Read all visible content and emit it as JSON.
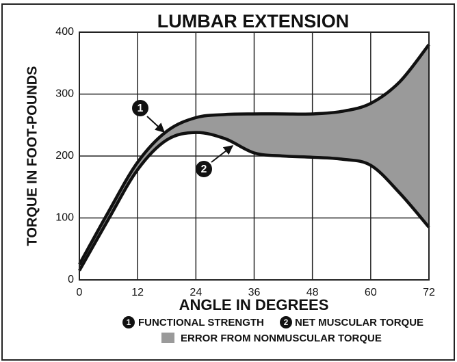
{
  "chart_data": {
    "type": "line",
    "title": "LUMBAR EXTENSION",
    "x_label": "ANGLE IN DEGREES",
    "y_label": "TORQUE IN FOOT-POUNDS",
    "x": [
      0,
      6,
      12,
      18,
      24,
      30,
      36,
      42,
      48,
      54,
      60,
      66,
      72
    ],
    "series": [
      {
        "name": "FUNCTIONAL STRENGTH",
        "marker": "1",
        "color": "#111111",
        "values": [
          25,
          110,
          190,
          240,
          262,
          267,
          268,
          268,
          268,
          272,
          285,
          320,
          380
        ]
      },
      {
        "name": "NET MUSCULAR TORQUE",
        "marker": "2",
        "color": "#111111",
        "values": [
          15,
          98,
          178,
          226,
          238,
          228,
          205,
          200,
          198,
          195,
          185,
          140,
          85
        ]
      }
    ],
    "area_label": "ERROR FROM NONMUSCULAR TORQUE",
    "area_color": "#9a9a9a",
    "xlim": [
      0,
      72
    ],
    "xticks": [
      0,
      12,
      24,
      36,
      48,
      60,
      72
    ],
    "ylim": [
      0,
      400
    ],
    "yticks": [
      0,
      100,
      200,
      300,
      400
    ],
    "grid": true
  }
}
